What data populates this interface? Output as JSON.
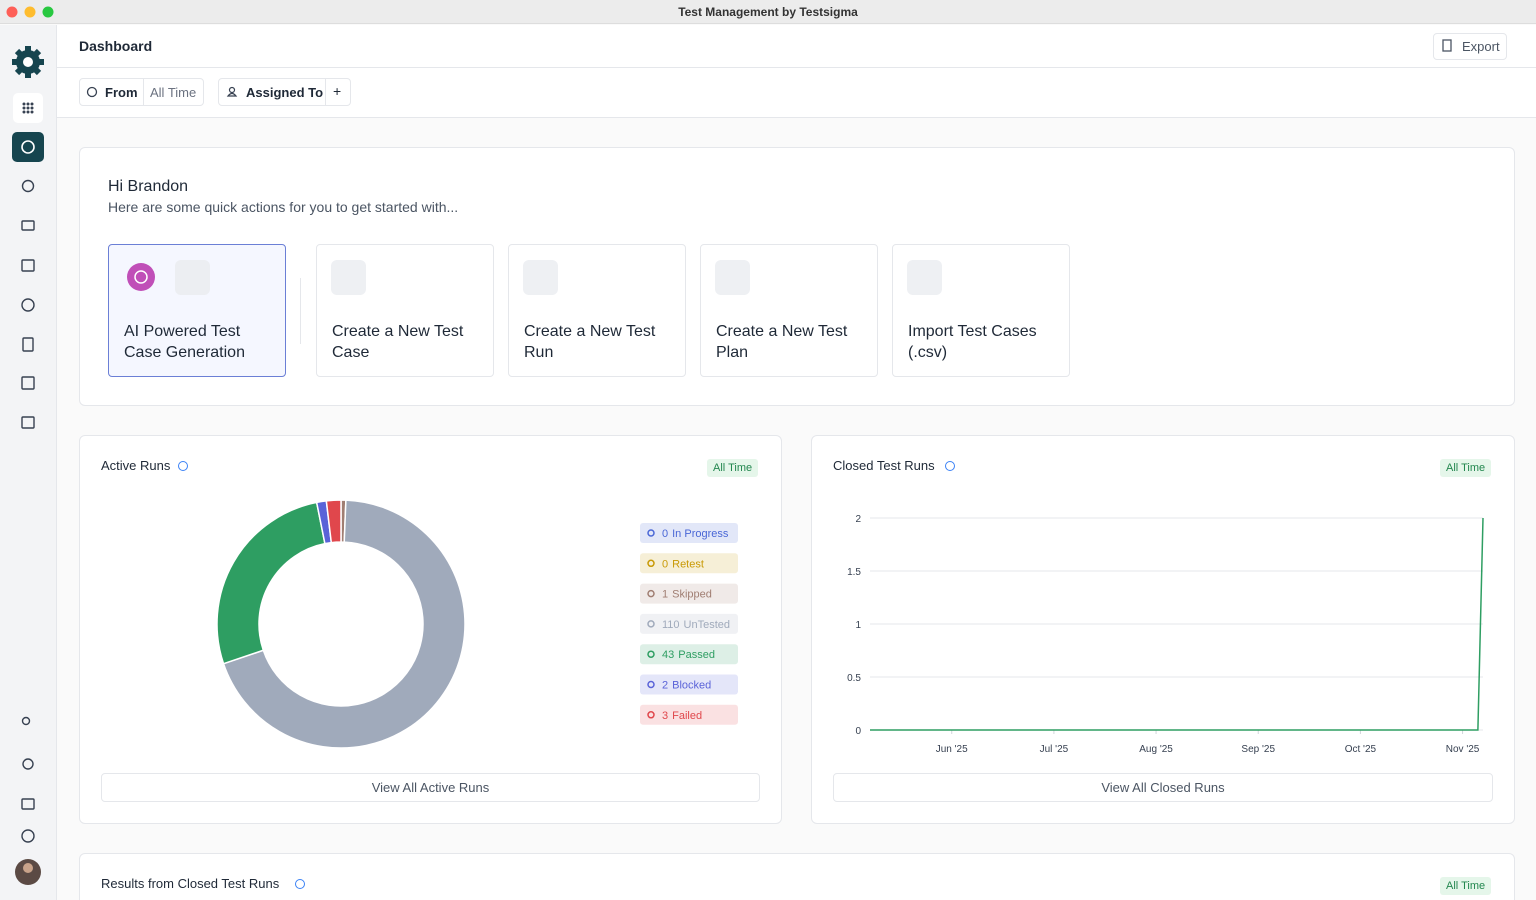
{
  "window": {
    "title": "Test Management by Testsigma"
  },
  "header": {
    "title": "Dashboard",
    "export": "Export"
  },
  "filters": {
    "from": "From",
    "from_value": "All Time",
    "assigned_to": "Assigned To",
    "add": "+"
  },
  "welcome": {
    "greeting": "Hi Brandon",
    "subtitle": "Here are some quick actions for you to get started with..."
  },
  "quick_actions": [
    "AI Powered Test Case Generation",
    "Create a New Test Case",
    "Create a New Test Run",
    "Create a New Test Plan",
    "Import Test Cases (.csv)"
  ],
  "panels": [
    {
      "badge": "All Time",
      "button": "View All Active Runs"
    },
    {
      "badge": "All Time",
      "button": "View All Closed Runs"
    },
    {
      "title": "Results from Closed Test Runs",
      "badge": "All Time"
    }
  ],
  "chart_data": [
    {
      "type": "pie",
      "title": "Active Runs",
      "donut": true,
      "categories": [
        "In Progress",
        "Retest",
        "Skipped",
        "UnTested",
        "Passed",
        "Blocked",
        "Failed"
      ],
      "values": [
        0,
        0,
        1,
        110,
        43,
        2,
        3
      ],
      "colors": [
        "#4a67d6",
        "#c99a06",
        "#a07e72",
        "#a0aabb",
        "#2e9e62",
        "#5a63d8",
        "#e0474c"
      ]
    },
    {
      "type": "line",
      "title": "Closed Test Runs",
      "x": [
        5.2,
        11.15,
        11.2
      ],
      "values": [
        0,
        0,
        2
      ],
      "color": "#2e9e62",
      "xlim": [
        5.2,
        11.2
      ],
      "xticks": [
        {
          "value": 6,
          "label": "Jun '25"
        },
        {
          "value": 7,
          "label": "Jul '25"
        },
        {
          "value": 8,
          "label": "Aug '25"
        },
        {
          "value": 9,
          "label": "Sep '25"
        },
        {
          "value": 10,
          "label": "Oct '25"
        },
        {
          "value": 11,
          "label": "Nov '25"
        }
      ],
      "ylim": [
        0,
        2
      ],
      "yticks": [
        0,
        0.5,
        1,
        1.5,
        2
      ],
      "grid": true
    }
  ]
}
